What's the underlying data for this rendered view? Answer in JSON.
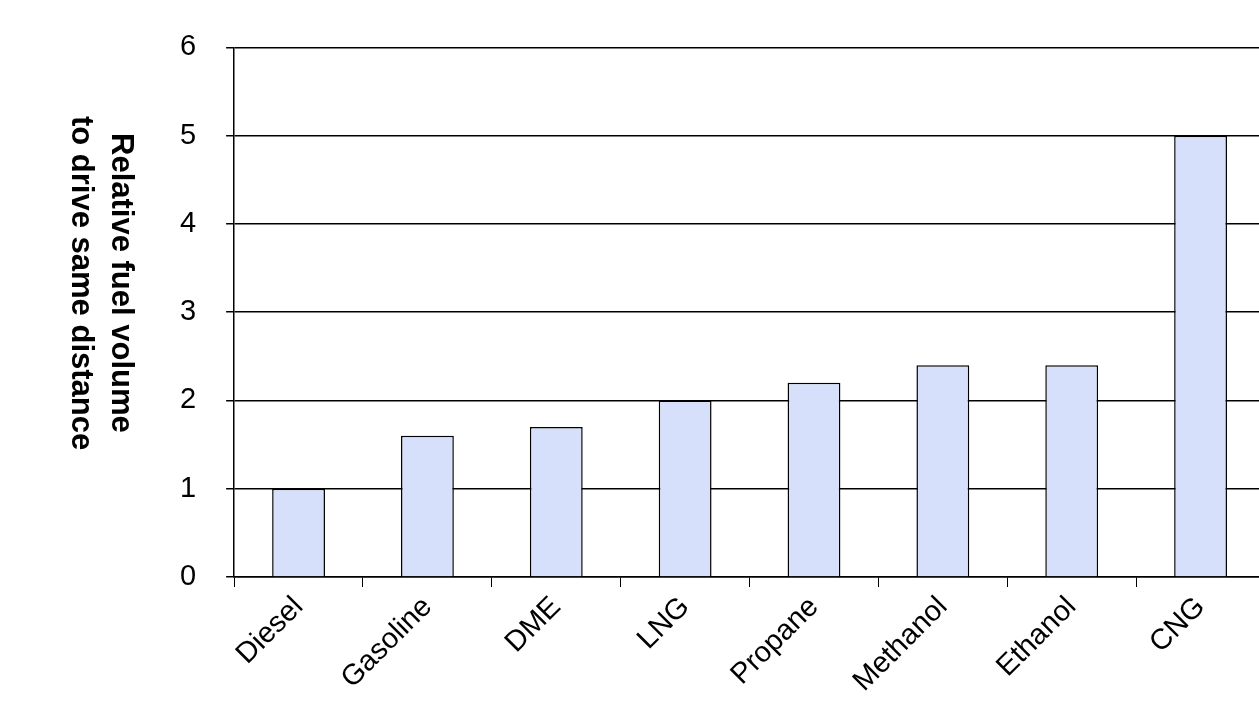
{
  "chart_data": {
    "type": "bar",
    "ylabel": "Relative fuel volume\nto drive same distance",
    "categories": [
      "Diesel",
      "Gasoline",
      "DME",
      "LNG",
      "Propane",
      "Methanol",
      "Ethanol",
      "CNG"
    ],
    "values": [
      1.0,
      1.6,
      1.7,
      2.0,
      2.2,
      2.4,
      2.4,
      5.0
    ],
    "color": "#d6e0fa",
    "ylim": [
      0,
      6
    ],
    "yticks": [
      0,
      1,
      2,
      3,
      4,
      5,
      6
    ],
    "grid": "y"
  }
}
